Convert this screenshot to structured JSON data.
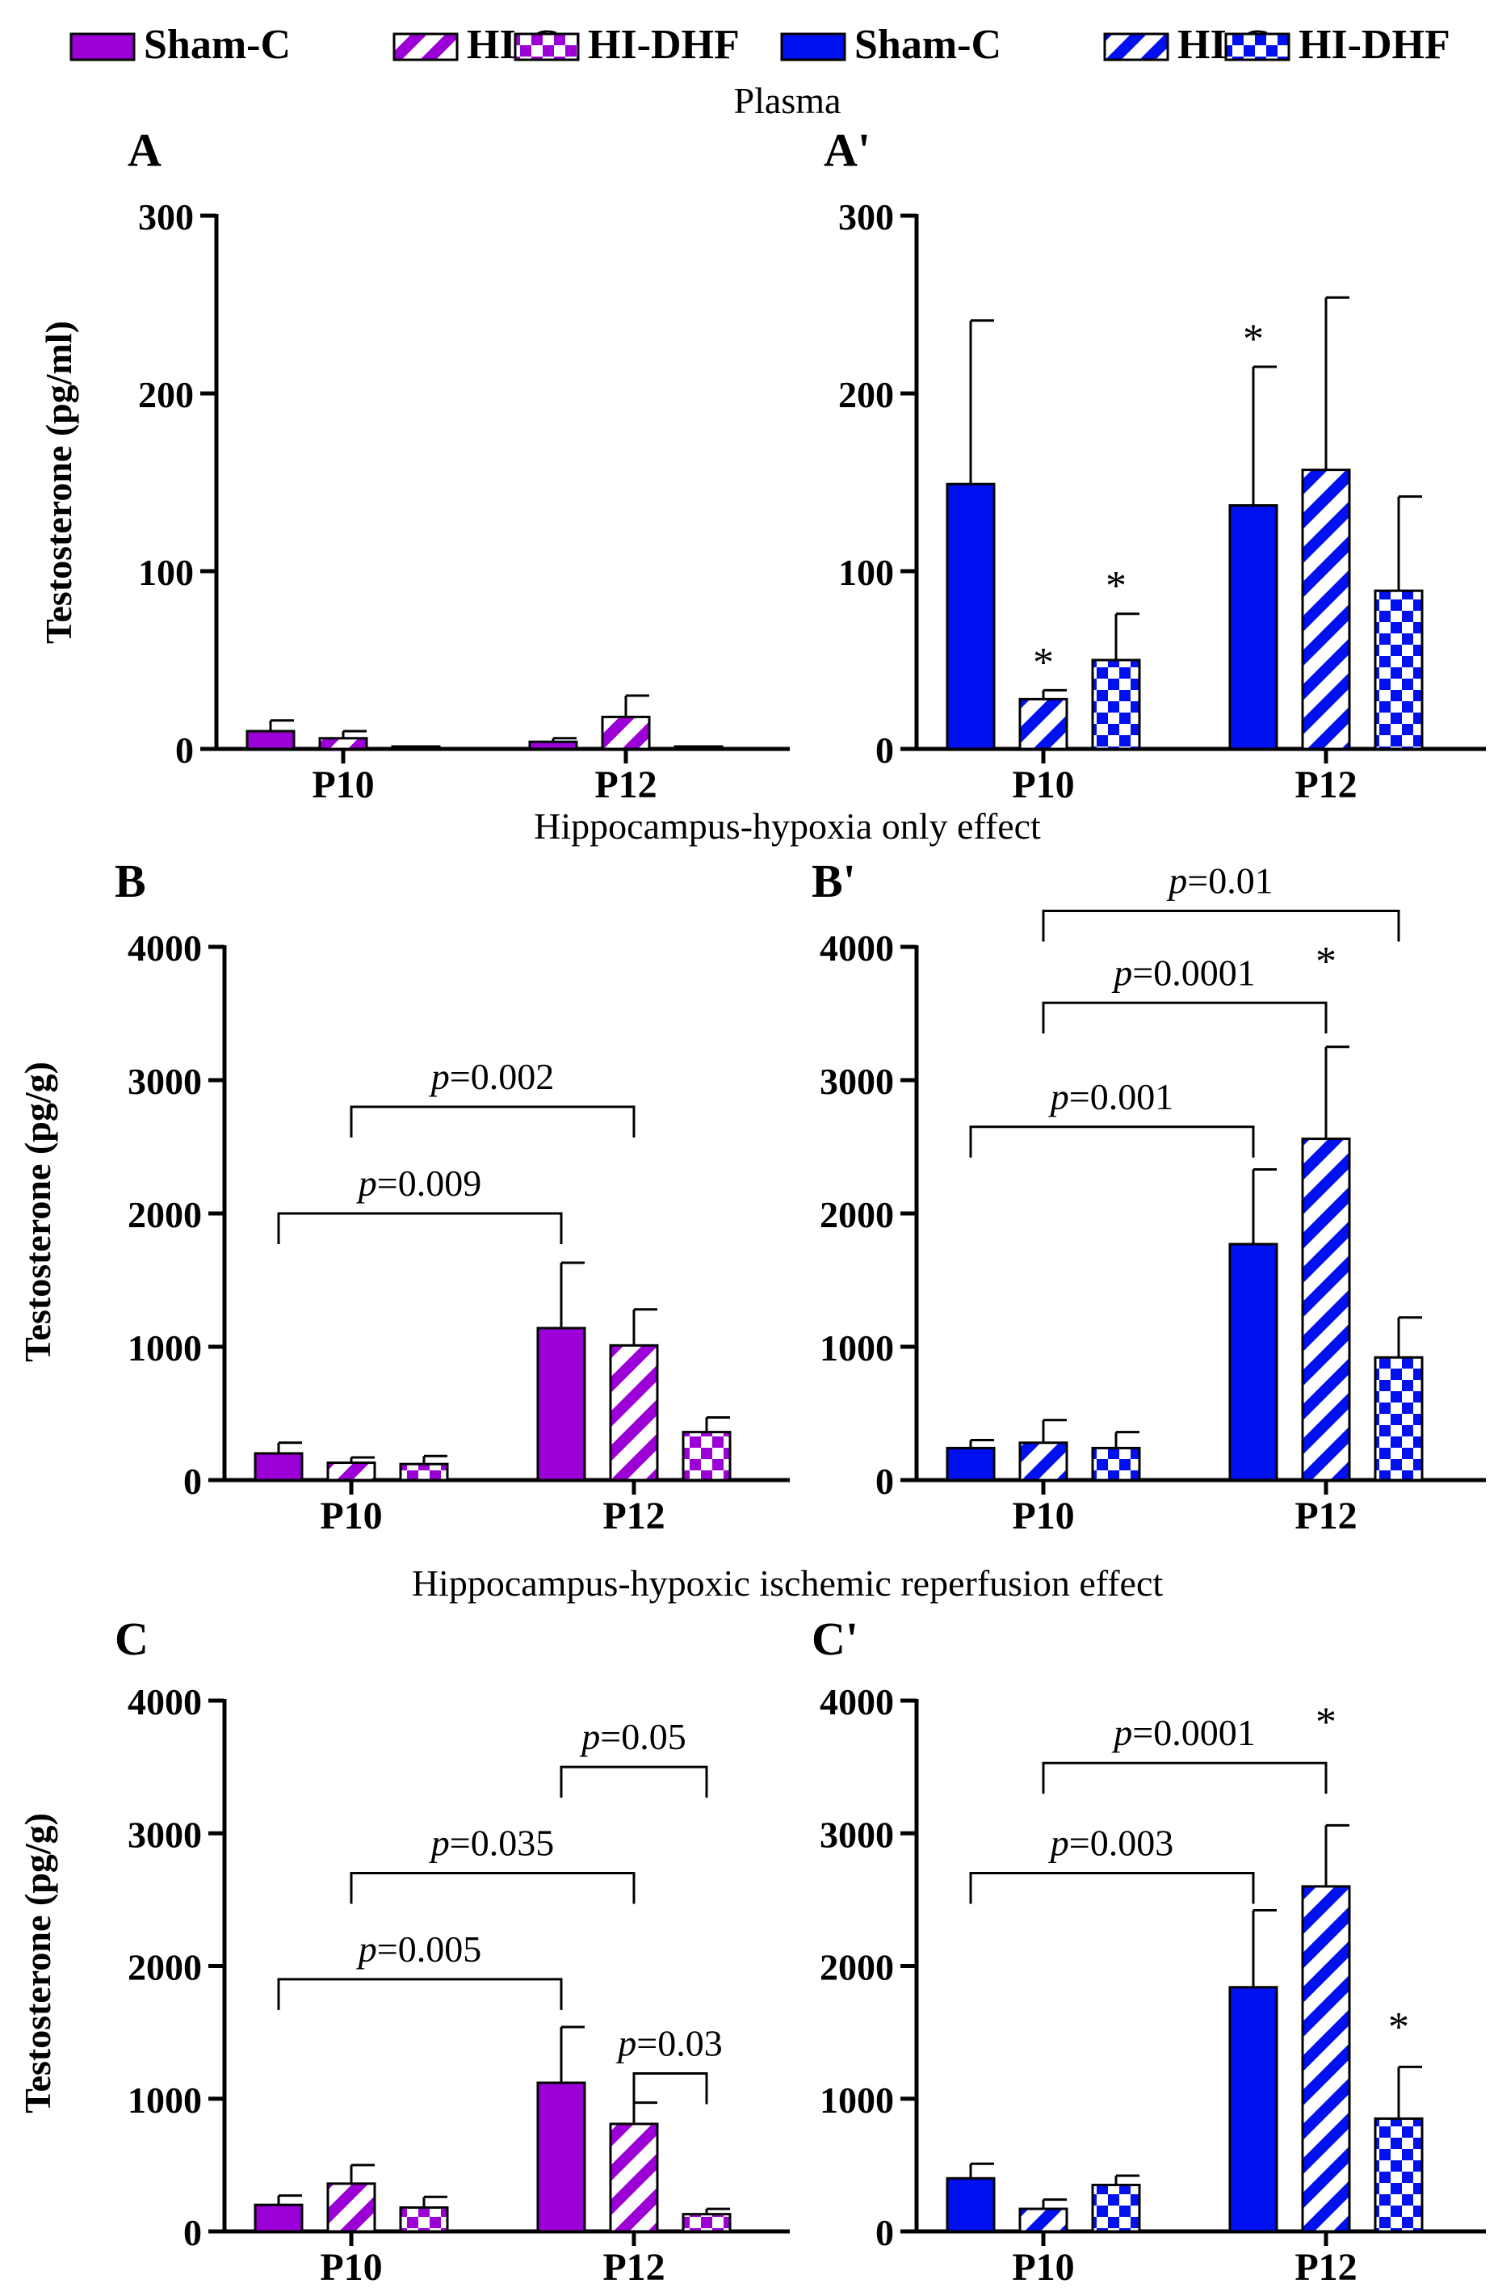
{
  "legend": {
    "purple": {
      "color": "#9b00d6",
      "items": [
        "Sham-C",
        "HI-C",
        "HI-DHF"
      ]
    },
    "blue": {
      "color": "#0010ee",
      "items": [
        "Sham-C",
        "HI-C",
        "HI-DHF"
      ]
    }
  },
  "colors": {
    "purple": "#9b00d6",
    "blue": "#0010ee",
    "axis": "#000000"
  },
  "row_titles": [
    "Plasma",
    "Hippocampus-hypoxia only effect",
    "Hippocampus-hypoxic ischemic reperfusion effect"
  ],
  "chart_data": [
    {
      "panel": "A",
      "type": "bar",
      "color": "purple",
      "ylabel": "Testosterone (pg/ml)",
      "ylim": [
        0,
        300
      ],
      "yticks": [
        0,
        100,
        200,
        300
      ],
      "categories": [
        "P10",
        "P12"
      ],
      "series": [
        {
          "name": "Sham-C",
          "pattern": "solid",
          "values": [
            10,
            4
          ],
          "errors": [
            6,
            2
          ]
        },
        {
          "name": "HI-C",
          "pattern": "hatch",
          "values": [
            6,
            18
          ],
          "errors": [
            4,
            12
          ]
        },
        {
          "name": "HI-DHF",
          "pattern": "checker",
          "values": [
            1,
            1
          ],
          "errors": [
            0,
            0
          ]
        }
      ],
      "stars": [],
      "brackets": []
    },
    {
      "panel": "A'",
      "type": "bar",
      "color": "blue",
      "ylabel": "",
      "ylim": [
        0,
        300
      ],
      "yticks": [
        0,
        100,
        200,
        300
      ],
      "categories": [
        "P10",
        "P12"
      ],
      "series": [
        {
          "name": "Sham-C",
          "pattern": "solid",
          "values": [
            149,
            137
          ],
          "errors": [
            92,
            78
          ]
        },
        {
          "name": "HI-C",
          "pattern": "hatch",
          "values": [
            28,
            157
          ],
          "errors": [
            5,
            97
          ]
        },
        {
          "name": "HI-DHF",
          "pattern": "checker",
          "values": [
            50,
            89
          ],
          "errors": [
            26,
            53
          ]
        }
      ],
      "stars": [
        {
          "series": 1,
          "category": 0
        },
        {
          "series": 2,
          "category": 0
        },
        {
          "series": 0,
          "category": 1
        }
      ],
      "brackets": []
    },
    {
      "panel": "B",
      "type": "bar",
      "color": "purple",
      "ylabel": "Testosterone (pg/g)",
      "ylim": [
        0,
        4000
      ],
      "yticks": [
        0,
        1000,
        2000,
        3000,
        4000
      ],
      "categories": [
        "P10",
        "P12"
      ],
      "series": [
        {
          "name": "Sham-C",
          "pattern": "solid",
          "values": [
            200,
            1140
          ],
          "errors": [
            80,
            490
          ]
        },
        {
          "name": "HI-C",
          "pattern": "hatch",
          "values": [
            130,
            1010
          ],
          "errors": [
            40,
            270
          ]
        },
        {
          "name": "HI-DHF",
          "pattern": "checker",
          "values": [
            120,
            360
          ],
          "errors": [
            60,
            110
          ]
        }
      ],
      "stars": [],
      "brackets": [
        {
          "from": [
            0,
            0
          ],
          "to": [
            0,
            1
          ],
          "level": 2000,
          "label_prefix": "p",
          "label": "=0.009"
        },
        {
          "from": [
            1,
            0
          ],
          "to": [
            1,
            1
          ],
          "level": 2800,
          "label_prefix": "p",
          "label": "=0.002"
        }
      ]
    },
    {
      "panel": "B'",
      "type": "bar",
      "color": "blue",
      "ylabel": "",
      "ylim": [
        0,
        4000
      ],
      "yticks": [
        0,
        1000,
        2000,
        3000,
        4000
      ],
      "categories": [
        "P10",
        "P12"
      ],
      "series": [
        {
          "name": "Sham-C",
          "pattern": "solid",
          "values": [
            240,
            1770
          ],
          "errors": [
            60,
            560
          ]
        },
        {
          "name": "HI-C",
          "pattern": "hatch",
          "values": [
            280,
            2560
          ],
          "errors": [
            170,
            690
          ]
        },
        {
          "name": "HI-DHF",
          "pattern": "checker",
          "values": [
            240,
            920
          ],
          "errors": [
            120,
            300
          ]
        }
      ],
      "stars": [
        {
          "series": 1,
          "category": 1,
          "at": 3920
        }
      ],
      "brackets": [
        {
          "from": [
            0,
            0
          ],
          "to": [
            0,
            1
          ],
          "level": 2650,
          "label_prefix": "p",
          "label": "=0.001"
        },
        {
          "from": [
            1,
            0
          ],
          "to": [
            1,
            1
          ],
          "level": 3580,
          "label_prefix": "p",
          "label": "=0.0001"
        },
        {
          "from": [
            1,
            0
          ],
          "to": [
            2,
            1
          ],
          "level": 4270,
          "label_prefix": "p",
          "label": "=0.01"
        }
      ]
    },
    {
      "panel": "C",
      "type": "bar",
      "color": "purple",
      "ylabel": "Testosterone (pg/g)",
      "ylim": [
        0,
        4000
      ],
      "yticks": [
        0,
        1000,
        2000,
        3000,
        4000
      ],
      "categories": [
        "P10",
        "P12"
      ],
      "series": [
        {
          "name": "Sham-C",
          "pattern": "solid",
          "values": [
            200,
            1120
          ],
          "errors": [
            70,
            420
          ]
        },
        {
          "name": "HI-C",
          "pattern": "hatch",
          "values": [
            360,
            810
          ],
          "errors": [
            140,
            160
          ]
        },
        {
          "name": "HI-DHF",
          "pattern": "checker",
          "values": [
            180,
            130
          ],
          "errors": [
            80,
            40
          ]
        }
      ],
      "stars": [],
      "brackets": [
        {
          "from": [
            0,
            0
          ],
          "to": [
            0,
            1
          ],
          "level": 1900,
          "label_prefix": "p",
          "label": "=0.005"
        },
        {
          "from": [
            1,
            0
          ],
          "to": [
            1,
            1
          ],
          "level": 2700,
          "label_prefix": "p",
          "label": "=0.035"
        },
        {
          "from": [
            0,
            1
          ],
          "to": [
            2,
            1
          ],
          "level": 3500,
          "label_prefix": "p",
          "label": "=0.05"
        },
        {
          "from": [
            1,
            1
          ],
          "to": [
            2,
            1
          ],
          "level": 1190,
          "label_prefix": "p",
          "label": "=0.03"
        }
      ]
    },
    {
      "panel": "C'",
      "type": "bar",
      "color": "blue",
      "ylabel": "",
      "ylim": [
        0,
        4000
      ],
      "yticks": [
        0,
        1000,
        2000,
        3000,
        4000
      ],
      "categories": [
        "P10",
        "P12"
      ],
      "series": [
        {
          "name": "Sham-C",
          "pattern": "solid",
          "values": [
            400,
            1840
          ],
          "errors": [
            110,
            580
          ]
        },
        {
          "name": "HI-C",
          "pattern": "hatch",
          "values": [
            170,
            2600
          ],
          "errors": [
            70,
            460
          ]
        },
        {
          "name": "HI-DHF",
          "pattern": "checker",
          "values": [
            350,
            850
          ],
          "errors": [
            70,
            390
          ]
        }
      ],
      "stars": [
        {
          "series": 1,
          "category": 1,
          "at": 3870
        },
        {
          "series": 2,
          "category": 1,
          "at": 1570
        }
      ],
      "brackets": [
        {
          "from": [
            0,
            0
          ],
          "to": [
            0,
            1
          ],
          "level": 2700,
          "label_prefix": "p",
          "label": "=0.003"
        },
        {
          "from": [
            1,
            0
          ],
          "to": [
            1,
            1
          ],
          "level": 3530,
          "label_prefix": "p",
          "label": "=0.0001"
        }
      ]
    }
  ]
}
